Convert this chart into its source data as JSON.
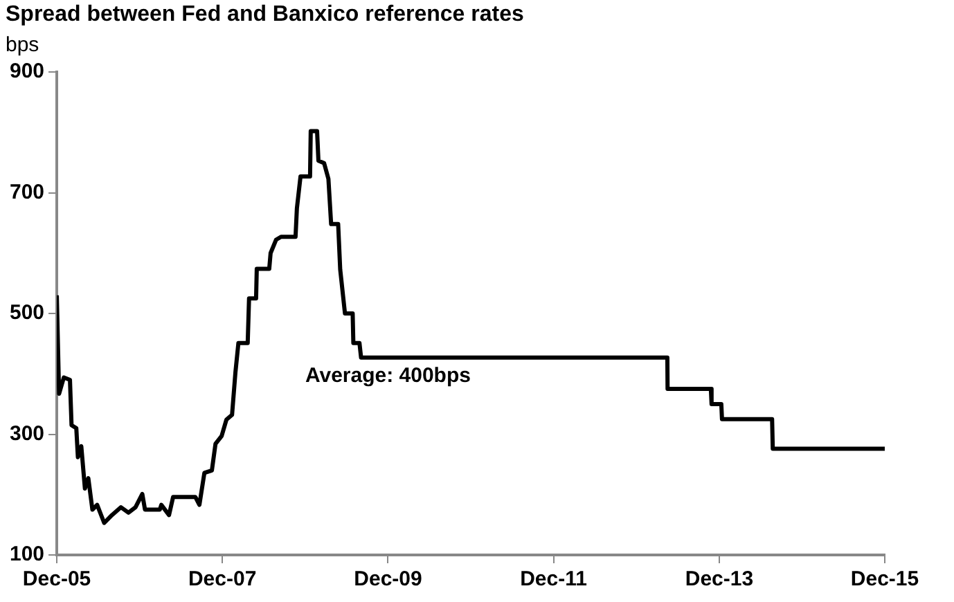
{
  "chart_data": {
    "type": "line",
    "title": "Spread between Fed and Banxico reference rates",
    "ylabel": "bps",
    "annotations": [
      "Average: 400bps"
    ],
    "x": [
      "2005-12-01",
      "2005-12-11",
      "2006-01-01",
      "2006-01-28",
      "2006-02-04",
      "2006-02-25",
      "2006-03-04",
      "2006-03-19",
      "2006-04-04",
      "2006-04-19",
      "2006-05-07",
      "2006-05-28",
      "2006-06-28",
      "2006-08-01",
      "2006-09-10",
      "2006-10-13",
      "2006-11-13",
      "2006-12-13",
      "2006-12-25",
      "2007-02-28",
      "2007-03-07",
      "2007-04-10",
      "2007-04-28",
      "2007-08-04",
      "2007-08-22",
      "2007-09-13",
      "2007-10-16",
      "2007-11-01",
      "2007-11-28",
      "2007-12-19",
      "2008-01-13",
      "2008-01-28",
      "2008-02-10",
      "2008-03-22",
      "2008-03-28",
      "2008-04-28",
      "2008-05-01",
      "2008-06-25",
      "2008-07-01",
      "2008-07-25",
      "2008-08-16",
      "2008-10-19",
      "2008-10-25",
      "2008-11-10",
      "2008-12-22",
      "2008-12-25",
      "2009-01-22",
      "2009-01-28",
      "2009-02-22",
      "2009-03-13",
      "2009-03-25",
      "2009-04-25",
      "2009-05-04",
      "2009-05-25",
      "2009-06-28",
      "2009-07-01",
      "2009-07-28",
      "2009-08-04",
      "2013-04-16",
      "2013-04-17",
      "2013-10-25",
      "2013-10-28",
      "2013-12-10",
      "2013-12-13",
      "2014-07-22",
      "2014-07-25",
      "2015-12-01"
    ],
    "series": [
      {
        "color": "#000000",
        "values": [
          530,
          367,
          394,
          390,
          315,
          310,
          262,
          280,
          210,
          227,
          175,
          183,
          153,
          166,
          179,
          170,
          179,
          201,
          175,
          175,
          183,
          166,
          196,
          196,
          183,
          236,
          240,
          284,
          297,
          324,
          332,
          403,
          451,
          451,
          525,
          525,
          574,
          574,
          600,
          622,
          627,
          627,
          674,
          727,
          727,
          802,
          802,
          753,
          749,
          723,
          648,
          648,
          573,
          500,
          500,
          451,
          451,
          427,
          427,
          375,
          375,
          350,
          350,
          325,
          325,
          276,
          276
        ]
      }
    ],
    "xlim": [
      "2005-12",
      "2015-12"
    ],
    "xticks": [
      {
        "value": "2005-12",
        "label": "Dec-05"
      },
      {
        "value": "2007-12",
        "label": "Dec-07"
      },
      {
        "value": "2009-12",
        "label": "Dec-09"
      },
      {
        "value": "2011-12",
        "label": "Dec-11"
      },
      {
        "value": "2013-12",
        "label": "Dec-13"
      },
      {
        "value": "2015-12",
        "label": "Dec-15"
      }
    ],
    "ylim": [
      100,
      900
    ],
    "yticks": [
      100,
      300,
      500,
      700,
      900
    ],
    "grid": false,
    "legend": false,
    "marker": "none",
    "line_style": "solid"
  }
}
